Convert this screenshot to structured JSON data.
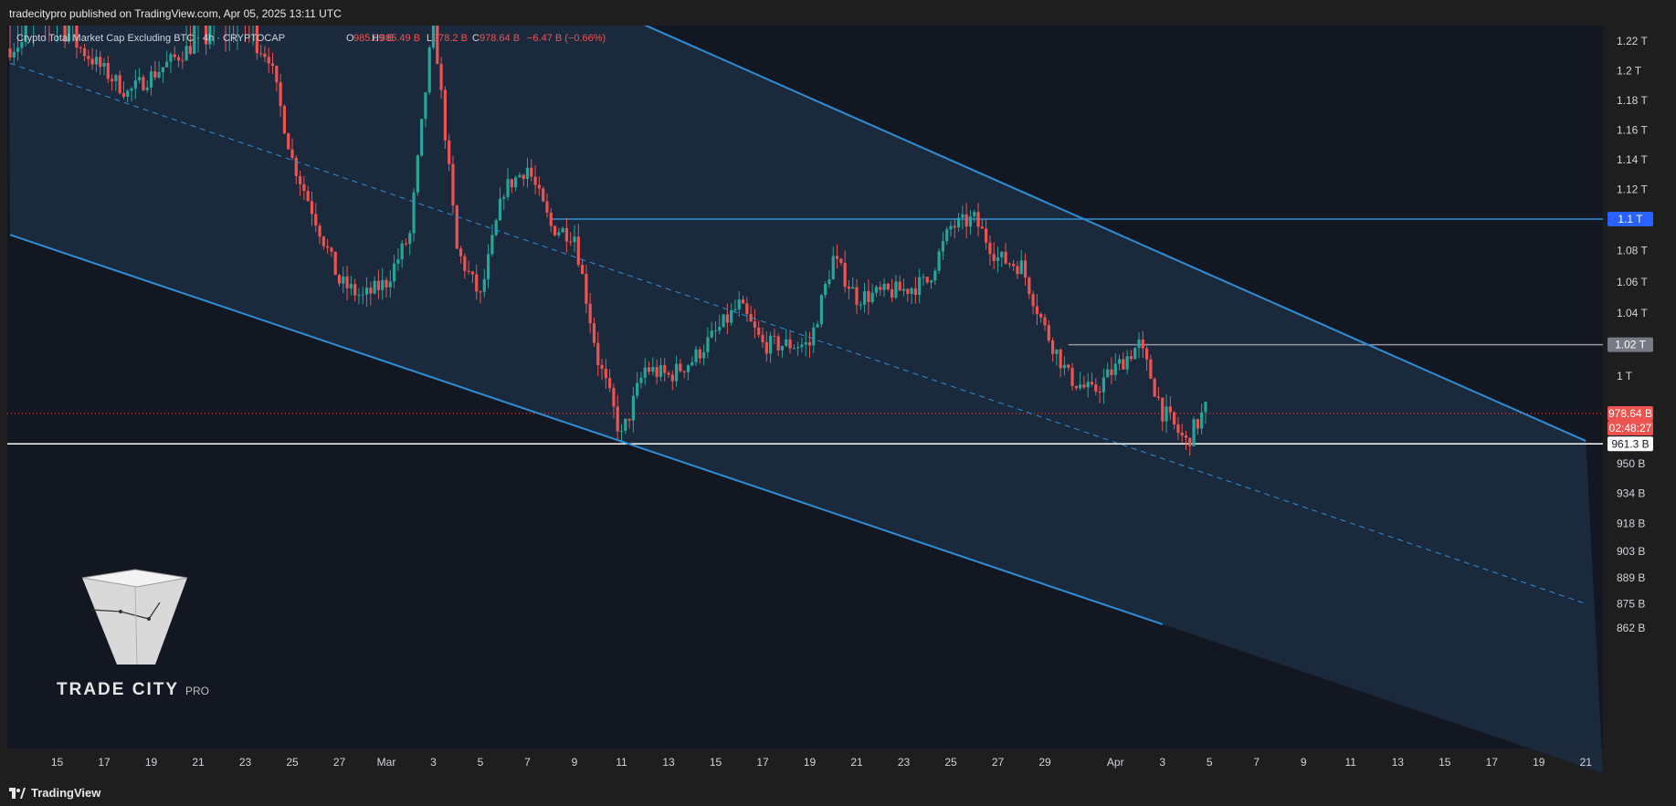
{
  "header": {
    "published": "tradecitypro published on TradingView.com, Apr 05, 2025 13:11 UTC"
  },
  "legend": {
    "symbol": "Crypto Total Market Cap Excluding BTC · 4h · CRYPTOCAP",
    "open_label": "O",
    "open": "985.09 B",
    "high_label": "H",
    "high": "985.49 B",
    "low_label": "L",
    "low": "978.2 B",
    "close_label": "C",
    "close": "978.64 B",
    "change": "−6.47 B (−0.66%)"
  },
  "footer": {
    "brand": "TradingView"
  },
  "logo": {
    "text": "TRADE CITY",
    "suffix": "PRO"
  },
  "colors": {
    "background": "#131722",
    "up": "#26a69a",
    "down": "#ef5350",
    "channel": "#2e8fd8",
    "channel_fill": "#1c2b3f"
  },
  "chart_data": {
    "type": "candlestick",
    "title": "Crypto Total Market Cap Excluding BTC",
    "timeframe": "4h",
    "exchange": "CRYPTOCAP",
    "x_ticks": [
      "15",
      "17",
      "19",
      "21",
      "23",
      "25",
      "27",
      "Mar",
      "3",
      "5",
      "7",
      "9",
      "11",
      "13",
      "15",
      "17",
      "19",
      "21",
      "23",
      "25",
      "27",
      "29",
      "Apr",
      "3",
      "5",
      "7",
      "9",
      "11",
      "13",
      "15",
      "17",
      "19",
      "21"
    ],
    "y_ticks": [
      "1.22 T",
      "1.2 T",
      "1.18 T",
      "1.16 T",
      "1.14 T",
      "1.12 T",
      "1.1 T",
      "1.08 T",
      "1.06 T",
      "1.04 T",
      "1.02 T",
      "1 T",
      "950 B",
      "934 B",
      "918 B",
      "903 B",
      "889 B",
      "875 B",
      "862 B"
    ],
    "price_labels": [
      {
        "text": "1.1 T",
        "kind": "level"
      },
      {
        "text": "1.02 T",
        "kind": "level"
      },
      {
        "text": "978.64 B",
        "kind": "last"
      },
      {
        "text": "02:48:27",
        "kind": "countdown"
      },
      {
        "text": "961.3 B",
        "kind": "level"
      }
    ],
    "horizontal_levels": [
      1.1,
      1.02,
      0.9613
    ],
    "last_price": 0.97864,
    "descending_channel": {
      "upper": [
        [
          "Mar 3",
          1.235
        ],
        [
          "Mar 26",
          1.1
        ],
        [
          "Apr 21",
          0.963
        ]
      ],
      "midline": [
        [
          "Feb 13",
          1.205
        ],
        [
          "Apr 5",
          0.95
        ],
        [
          "Apr 21",
          0.875
        ]
      ],
      "lower": [
        [
          "Feb 13",
          1.09
        ],
        [
          "Mar 11",
          0.961
        ],
        [
          "Apr 3",
          0.864
        ]
      ]
    },
    "price_path": [
      [
        "Feb 13",
        1.215
      ],
      [
        "Feb 15",
        1.23
      ],
      [
        "Feb 18",
        1.185
      ],
      [
        "Feb 21",
        1.22
      ],
      [
        "Feb 23",
        1.225
      ],
      [
        "Feb 24",
        1.21
      ],
      [
        "Feb 25",
        1.14
      ],
      [
        "Feb 26",
        1.1
      ],
      [
        "Feb 27",
        1.06
      ],
      [
        "Feb 28",
        1.05
      ],
      [
        "Mar 1",
        1.06
      ],
      [
        "Mar 2",
        1.09
      ],
      [
        "Mar 3",
        1.235
      ],
      [
        "Mar 4",
        1.08
      ],
      [
        "Mar 5",
        1.05
      ],
      [
        "Mar 6",
        1.12
      ],
      [
        "Mar 7",
        1.135
      ],
      [
        "Mar 8",
        1.095
      ],
      [
        "Mar 9",
        1.09
      ],
      [
        "Mar 10",
        1.01
      ],
      [
        "Mar 11",
        0.965
      ],
      [
        "Mar 12",
        1.005
      ],
      [
        "Mar 13",
        1.0
      ],
      [
        "Mar 14",
        1.01
      ],
      [
        "Mar 16",
        1.045
      ],
      [
        "Mar 17",
        1.02
      ],
      [
        "Mar 19",
        1.02
      ],
      [
        "Mar 20",
        1.075
      ],
      [
        "Mar 21",
        1.05
      ],
      [
        "Mar 23",
        1.055
      ],
      [
        "Mar 24",
        1.06
      ],
      [
        "Mar 25",
        1.095
      ],
      [
        "Mar 26",
        1.1
      ],
      [
        "Mar 27",
        1.075
      ],
      [
        "Mar 28",
        1.07
      ],
      [
        "Mar 29",
        1.03
      ],
      [
        "Mar 30",
        1.0
      ],
      [
        "Mar 31",
        0.99
      ],
      [
        "Apr 1",
        1.005
      ],
      [
        "Apr 2",
        1.02
      ],
      [
        "Apr 3",
        0.98
      ],
      [
        "Apr 4",
        0.962
      ],
      [
        "Apr 5",
        0.985
      ],
      [
        "Apr 5",
        0.97864
      ]
    ]
  }
}
